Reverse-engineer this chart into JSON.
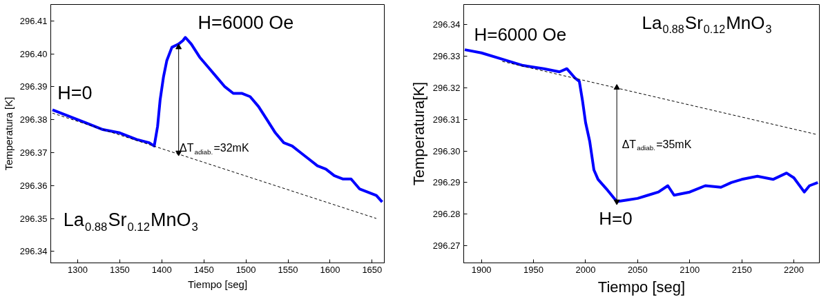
{
  "chart_data": [
    {
      "type": "line",
      "xlabel": "Tiempo [seg]",
      "ylabel": "Temperatura [K]",
      "xlim": [
        1268,
        1664.5
      ],
      "ylim": [
        296.3365,
        296.415
      ],
      "xticks": [
        1300,
        1350,
        1400,
        1450,
        1500,
        1550,
        1600,
        1650
      ],
      "yticks": [
        {
          "value": 296.34,
          "label": "296.34"
        },
        {
          "value": 296.35,
          "label": "296.35"
        },
        {
          "value": 296.36,
          "label": "296.36"
        },
        {
          "value": 296.37,
          "label": "296.37"
        },
        {
          "value": 296.38,
          "label": "296.38"
        },
        {
          "value": 296.39,
          "label": "296.39"
        },
        {
          "value": 296.4,
          "label": "296.40"
        },
        {
          "value": 296.41,
          "label": "296.41"
        }
      ],
      "grid": false,
      "series": [
        {
          "color": "#0000ff",
          "x": [
            1270,
            1290,
            1310,
            1330,
            1350,
            1370,
            1385,
            1391,
            1395,
            1398,
            1402,
            1406,
            1412,
            1420,
            1425,
            1428,
            1435,
            1445,
            1455,
            1465,
            1475,
            1485,
            1495,
            1505,
            1515,
            1525,
            1535,
            1545,
            1555,
            1565,
            1575,
            1585,
            1595,
            1605,
            1615,
            1625,
            1635,
            1645,
            1655,
            1662
          ],
          "values": [
            296.383,
            296.381,
            296.379,
            296.377,
            296.376,
            296.374,
            296.373,
            296.372,
            296.378,
            296.386,
            296.393,
            296.398,
            296.402,
            296.403,
            296.404,
            296.405,
            296.403,
            296.399,
            296.396,
            296.393,
            296.39,
            296.388,
            296.388,
            296.387,
            296.384,
            296.38,
            296.376,
            296.373,
            296.372,
            296.37,
            296.368,
            296.366,
            296.365,
            296.363,
            296.362,
            296.362,
            296.359,
            296.358,
            296.357,
            296.355
          ]
        },
        {
          "color": "#000000",
          "line_style": "dashed",
          "x": [
            1270,
            1655
          ],
          "values": [
            296.382,
            296.35
          ]
        },
        {
          "color": "#000000",
          "marker": "triangle",
          "x": [
            1420,
            1420
          ],
          "values": [
            296.37,
            296.402
          ]
        }
      ],
      "annotations": [
        "H=6000 Oe",
        "H=0",
        "ΔT$_{adiab.}$=32mK",
        "La$_{0.88}$Sr$_{0.12}$MnO$_{3}$"
      ]
    },
    {
      "type": "line",
      "xlabel": "Tiempo [seg]",
      "ylabel": "Temperatura[K]",
      "xlim": [
        1883,
        2224.5
      ],
      "ylim": [
        296.2646,
        296.3463
      ],
      "xticks": [
        1900,
        1950,
        2000,
        2050,
        2100,
        2150,
        2200
      ],
      "yticks": [
        {
          "value": 296.27,
          "label": "296.27"
        },
        {
          "value": 296.28,
          "label": "296.28"
        },
        {
          "value": 296.29,
          "label": "296.29"
        },
        {
          "value": 296.3,
          "label": "296.30"
        },
        {
          "value": 296.31,
          "label": "296.31"
        },
        {
          "value": 296.32,
          "label": "296.32"
        },
        {
          "value": 296.33,
          "label": "296.33"
        },
        {
          "value": 296.34,
          "label": "296.34"
        }
      ],
      "grid": false,
      "series": [
        {
          "color": "#0000ff",
          "x": [
            1884,
            1900,
            1920,
            1940,
            1960,
            1975,
            1982,
            1990,
            1994,
            1997,
            2000,
            2004,
            2008,
            2012,
            2020,
            2030,
            2040,
            2050,
            2060,
            2070,
            2079,
            2085,
            2100,
            2115,
            2130,
            2140,
            2150,
            2165,
            2180,
            2193,
            2200,
            2210,
            2215,
            2223
          ],
          "values": [
            296.332,
            296.331,
            296.329,
            296.327,
            296.326,
            296.325,
            296.326,
            296.323,
            296.322,
            296.316,
            296.309,
            296.303,
            296.294,
            296.291,
            296.288,
            296.284,
            296.2845,
            296.285,
            296.286,
            296.287,
            296.289,
            296.286,
            296.287,
            296.289,
            296.2885,
            296.29,
            296.291,
            296.292,
            296.291,
            296.293,
            296.2915,
            296.287,
            296.289,
            296.29
          ]
        },
        {
          "color": "#000000",
          "line_style": "dashed",
          "x": [
            1920,
            2222
          ],
          "values": [
            296.3283,
            296.3052
          ]
        },
        {
          "color": "#000000",
          "marker": "triangle",
          "x": [
            2030,
            2030
          ],
          "values": [
            296.32,
            296.284
          ]
        }
      ],
      "annotations": [
        "H=6000 Oe",
        "La$_{0.88}$Sr$_{0.12}$MnO$_{3}$",
        "ΔT$_{adiab.}$=35mK",
        "H=0"
      ]
    }
  ]
}
